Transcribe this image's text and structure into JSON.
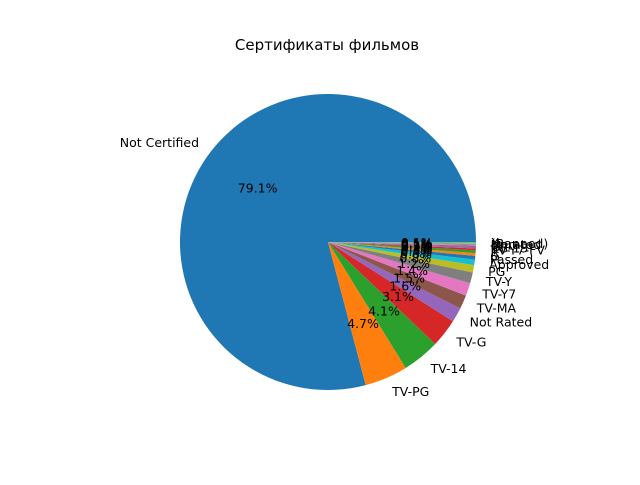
{
  "chart_data": {
    "type": "pie",
    "title": "Сертификаты фильмов",
    "start_angle_deg": 0,
    "direction": "counterclockwise",
    "slices": [
      {
        "label": "Not Certified",
        "value": 79.1,
        "pct_label": "79.1%",
        "color": "#1f77b4"
      },
      {
        "label": "TV-PG",
        "value": 4.7,
        "pct_label": "4.7%",
        "color": "#ff7f0e"
      },
      {
        "label": "TV-14",
        "value": 4.1,
        "pct_label": "4.1%",
        "color": "#2ca02c"
      },
      {
        "label": "TV-G",
        "value": 3.1,
        "pct_label": "3.1%",
        "color": "#d62728"
      },
      {
        "label": "Not Rated",
        "value": 1.6,
        "pct_label": "1.6%",
        "color": "#9467bd"
      },
      {
        "label": "TV-MA",
        "value": 1.5,
        "pct_label": "1.5%",
        "color": "#8c564b"
      },
      {
        "label": "TV-Y7",
        "value": 1.4,
        "pct_label": "1.4%",
        "color": "#e377c2"
      },
      {
        "label": "TV-Y",
        "value": 1.2,
        "pct_label": "1.2%",
        "color": "#7f7f7f"
      },
      {
        "label": "PG",
        "value": 0.8,
        "pct_label": "0.8%",
        "color": "#bcbd22"
      },
      {
        "label": "Approved",
        "value": 0.6,
        "pct_label": "0.6%",
        "color": "#17becf"
      },
      {
        "label": "Passed",
        "value": 0.4,
        "pct_label": "0.4%",
        "color": "#1f77b4"
      },
      {
        "label": "G",
        "value": 0.3,
        "pct_label": "0.3%",
        "color": "#ff7f0e"
      },
      {
        "label": "R",
        "value": 0.3,
        "pct_label": "0.3%",
        "color": "#2ca02c"
      },
      {
        "label": "TV-Y7-FV",
        "value": 0.2,
        "pct_label": "0.2%",
        "color": "#d62728"
      },
      {
        "label": "PG-13",
        "value": 0.2,
        "pct_label": "0.2%",
        "color": "#9467bd"
      },
      {
        "label": "GP",
        "value": 0.1,
        "pct_label": "0.1%",
        "color": "#8c564b"
      },
      {
        "label": "M",
        "value": 0.1,
        "pct_label": "0.1%",
        "color": "#e377c2"
      },
      {
        "label": "Unrated",
        "value": 0.1,
        "pct_label": "0.1%",
        "color": "#7f7f7f"
      },
      {
        "label": "(Banned)",
        "value": 0.1,
        "pct_label": "0.1%",
        "color": "#bcbd22"
      },
      {
        "label": "X",
        "value": 0.1,
        "pct_label": "0.1%",
        "color": "#17becf"
      }
    ]
  }
}
